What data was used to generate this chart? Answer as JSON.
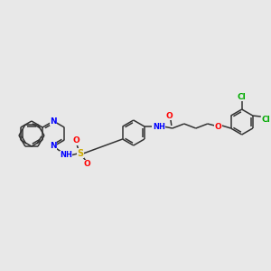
{
  "bg_color": "#e8e8e8",
  "bond_color": "#333333",
  "bond_lw": 1.2,
  "atom_colors": {
    "N": "#0000ff",
    "O": "#ff0000",
    "S": "#ccaa00",
    "Cl": "#00aa00",
    "C": "#333333",
    "H": "#333333"
  },
  "font_size": 7
}
